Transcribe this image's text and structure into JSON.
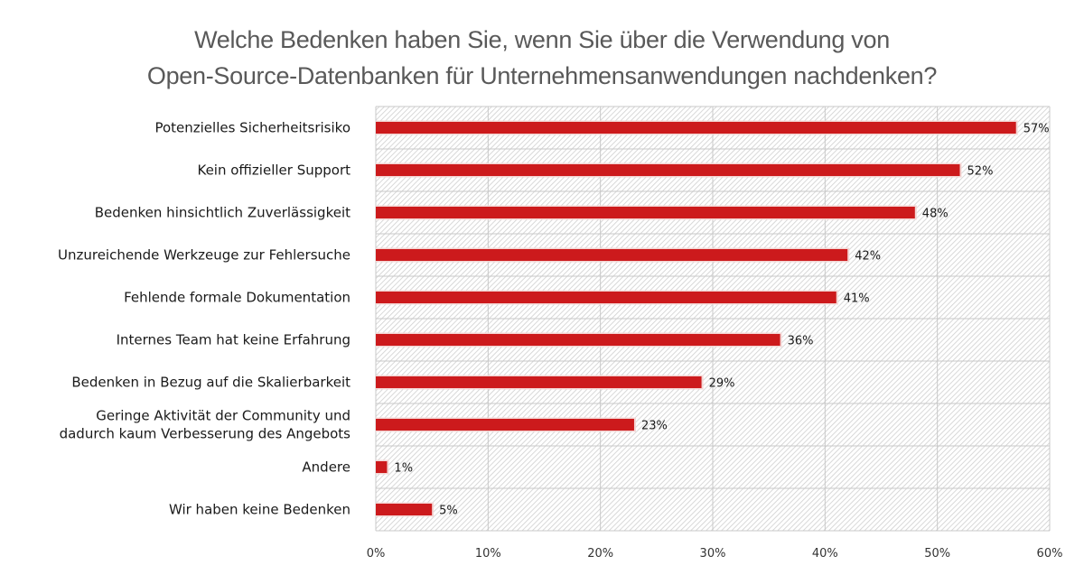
{
  "chart_data": {
    "type": "bar",
    "orientation": "horizontal",
    "title": "Welche Bedenken haben Sie, wenn Sie über die Verwendung von Open-Source-Datenbanken für Unternehmensanwendungen nachdenken?",
    "title_lines": [
      "Welche Bedenken haben Sie, wenn Sie über die Verwendung von",
      "Open-Source-Datenbanken für Unternehmensanwendungen nachdenken?"
    ],
    "categories": [
      [
        "Potenzielles Sicherheitsrisiko"
      ],
      [
        "Kein offizieller Support"
      ],
      [
        "Bedenken hinsichtlich Zuverlässigkeit"
      ],
      [
        "Unzureichende Werkzeuge zur Fehlersuche"
      ],
      [
        "Fehlende formale Dokumentation"
      ],
      [
        "Internes Team hat keine Erfahrung"
      ],
      [
        "Bedenken in Bezug auf die Skalierbarkeit"
      ],
      [
        "Geringe Aktivität der Community und",
        "dadurch kaum Verbesserung des Angebots"
      ],
      [
        "Andere"
      ],
      [
        "Wir haben keine Bedenken"
      ]
    ],
    "values": [
      57,
      52,
      48,
      42,
      41,
      36,
      29,
      23,
      1,
      5
    ],
    "value_labels": [
      "57%",
      "52%",
      "48%",
      "42%",
      "41%",
      "36%",
      "29%",
      "23%",
      "1%",
      "5%"
    ],
    "xlabel": "",
    "ylabel": "",
    "xlim": [
      0,
      60
    ],
    "xticks": [
      0,
      10,
      20,
      30,
      40,
      50,
      60
    ],
    "xtick_labels": [
      "0%",
      "10%",
      "20%",
      "30%",
      "40%",
      "50%",
      "60%"
    ],
    "grid": true,
    "legend": "none",
    "colors": {
      "bar": "#cc1a1c",
      "bar_halo": "#f3d6d4",
      "grid": "#c8c8c8",
      "hatch": "#cfcfcf",
      "title": "#595959"
    }
  }
}
